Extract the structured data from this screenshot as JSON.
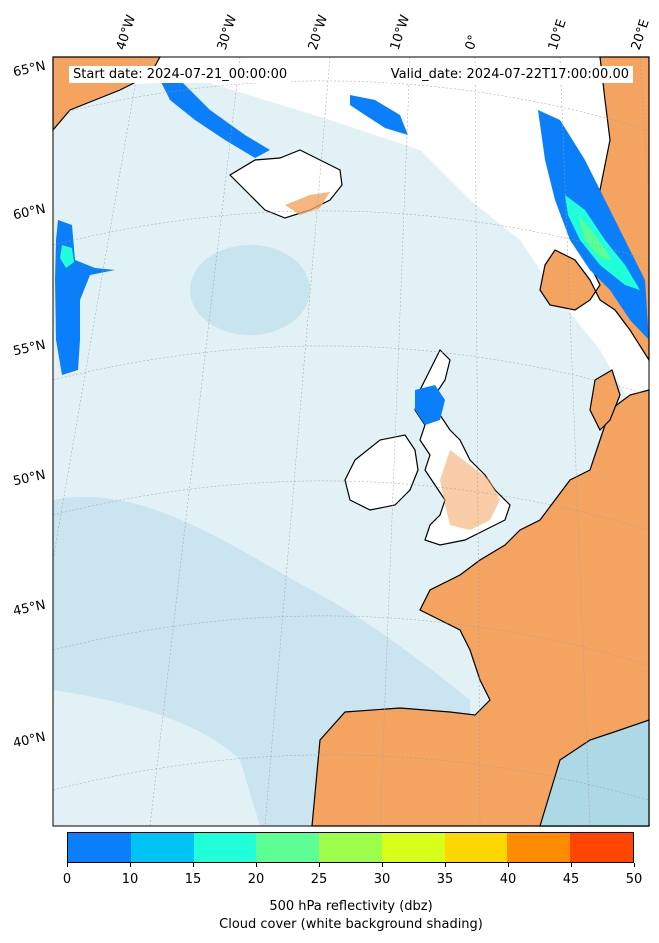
{
  "map": {
    "start_date": "Start date: 2024-07-21_00:00:00",
    "valid_date": "Valid_date: 2024-07-22T17:00:00.00",
    "longitude_labels": [
      "40°W",
      "30°W",
      "20°W",
      "10°W",
      "0°",
      "10°E",
      "20°E"
    ],
    "latitude_labels": [
      "65°N",
      "60°N",
      "55°N",
      "50°N",
      "45°N",
      "40°N"
    ],
    "region": "North Atlantic / Western Europe",
    "colors": {
      "land": "#f4a460",
      "cloud": "#add8e6",
      "coastline": "#000000",
      "gridline": "#9e9e9e"
    }
  },
  "colorbar": {
    "label": "500 hPa reflectivity (dbz)",
    "sublabel": "Cloud cover (white background shading)",
    "ticks": [
      "0",
      "10",
      "15",
      "20",
      "25",
      "30",
      "35",
      "40",
      "45",
      "50"
    ],
    "colors": [
      "#0a7ff9",
      "#00c4f6",
      "#20ffd9",
      "#5dff94",
      "#9dfd4b",
      "#d8fe1c",
      "#ffd700",
      "#ff8c00",
      "#ff4500"
    ]
  }
}
